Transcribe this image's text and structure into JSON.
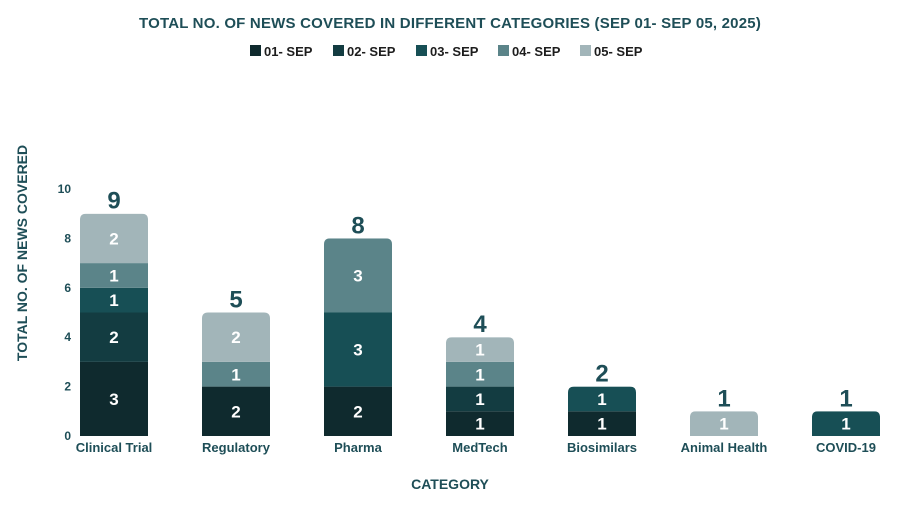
{
  "chart_data": {
    "type": "bar",
    "stacked": true,
    "title": "TOTAL NO. OF NEWS COVERED IN DIFFERENT CATEGORIES (SEP 01- SEP 05, 2025)",
    "xlabel": "CATEGORY",
    "ylabel": "TOTAL  NO. OF NEWS COVERED",
    "ylim": [
      0,
      10
    ],
    "yticks": [
      0,
      2,
      4,
      6,
      8,
      10
    ],
    "grid": false,
    "legend_position": "top-center",
    "categories": [
      "Clinical Trial",
      "Regulatory",
      "Pharma",
      "MedTech",
      "Biosimilars",
      "Animal Health",
      "COVID-19"
    ],
    "series": [
      {
        "name": "01- SEP",
        "color": "#0f2a2e",
        "values": [
          3,
          2,
          2,
          1,
          1,
          0,
          0
        ]
      },
      {
        "name": "02- SEP",
        "color": "#133c41",
        "values": [
          2,
          0,
          0,
          1,
          0,
          0,
          0
        ]
      },
      {
        "name": "03- SEP",
        "color": "#174f55",
        "values": [
          1,
          0,
          3,
          0,
          1,
          0,
          1
        ]
      },
      {
        "name": "04- SEP",
        "color": "#5b8489",
        "values": [
          1,
          1,
          3,
          1,
          0,
          0,
          0
        ]
      },
      {
        "name": "05- SEP",
        "color": "#a2b5b9",
        "values": [
          2,
          2,
          0,
          1,
          0,
          1,
          0
        ]
      }
    ],
    "totals": [
      9,
      5,
      8,
      4,
      2,
      1,
      1
    ]
  }
}
